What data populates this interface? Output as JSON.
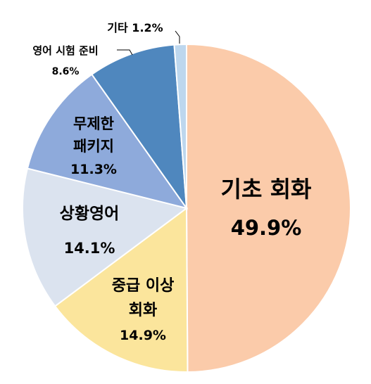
{
  "chart_data": {
    "type": "pie",
    "slices": [
      {
        "label": "기초 회화",
        "value": 49.9,
        "value_label": "49.9%",
        "color": "#FBCBAA"
      },
      {
        "label": "중급 이상 회화",
        "value": 14.9,
        "value_label": "14.9%",
        "color": "#FBE59C"
      },
      {
        "label": "상황영어",
        "value": 14.1,
        "value_label": "14.1%",
        "color": "#DBE3EF"
      },
      {
        "label": "무제한 패키지",
        "value": 11.3,
        "value_label": "11.3%",
        "color": "#8EAADB"
      },
      {
        "label": "영어 시험 준비",
        "value": 8.6,
        "value_label": "8.6%",
        "color": "#4F87BE"
      },
      {
        "label": "기타",
        "value": 1.2,
        "value_label": "1.2%",
        "color": "#BDD7EE"
      }
    ],
    "text": {
      "s0_line1": "기초 회화",
      "s0_pct": "49.9%",
      "s1_line1": "중급 이상",
      "s1_line2": "회화",
      "s1_pct": "14.9%",
      "s2_line1": "상황영어",
      "s2_pct": "14.1%",
      "s3_line1": "무제한",
      "s3_line2": "패키지",
      "s3_pct": "11.3%",
      "s4_line1": "영어 시험 준비",
      "s4_pct": "8.6%",
      "s5_line1": "기타 1.2%"
    }
  }
}
